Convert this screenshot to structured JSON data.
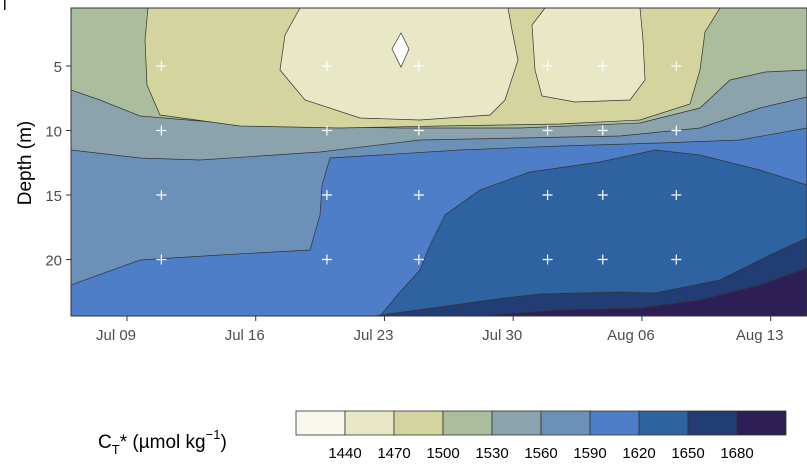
{
  "chart_data": {
    "type": "contour",
    "xlabel": "",
    "ylabel": "Depth (m)",
    "y_reversed": true,
    "x_ticks": [
      "Jul 09",
      "Jul 16",
      "Jul 23",
      "Jul 30",
      "Aug 06",
      "Aug 13"
    ],
    "y_ticks": [
      "5",
      "10",
      "15",
      "20"
    ],
    "legend": {
      "title_main": "C",
      "title_sub": "T",
      "title_rest": "* (µmol kg",
      "title_sup": "−1",
      "title_end": ")",
      "placement": "bottom",
      "breaks": [
        "1440",
        "1470",
        "1500",
        "1530",
        "1560",
        "1590",
        "1620",
        "1650",
        "1680"
      ],
      "colors": [
        "#f7f7ec",
        "#e8e8c6",
        "#d3d49e",
        "#acbd9e",
        "#8aa3ad",
        "#6c91b8",
        "#4f7ec8",
        "#2f62a0",
        "#223d74",
        "#2d1f55"
      ]
    },
    "sample_points": [
      {
        "date": "Jul 10",
        "depth": 5
      },
      {
        "date": "Jul 10",
        "depth": 10
      },
      {
        "date": "Jul 10",
        "depth": 15
      },
      {
        "date": "Jul 10",
        "depth": 20
      },
      {
        "date": "Jul 19",
        "depth": 5
      },
      {
        "date": "Jul 19",
        "depth": 10
      },
      {
        "date": "Jul 19",
        "depth": 15
      },
      {
        "date": "Jul 19",
        "depth": 20
      },
      {
        "date": "Jul 24",
        "depth": 5
      },
      {
        "date": "Jul 24",
        "depth": 10
      },
      {
        "date": "Jul 24",
        "depth": 15
      },
      {
        "date": "Jul 24",
        "depth": 20
      },
      {
        "date": "Jul 31",
        "depth": 5
      },
      {
        "date": "Jul 31",
        "depth": 10
      },
      {
        "date": "Jul 31",
        "depth": 15
      },
      {
        "date": "Jul 31",
        "depth": 20
      },
      {
        "date": "Aug 03",
        "depth": 5
      },
      {
        "date": "Aug 03",
        "depth": 10
      },
      {
        "date": "Aug 03",
        "depth": 15
      },
      {
        "date": "Aug 03",
        "depth": 20
      },
      {
        "date": "Aug 07",
        "depth": 5
      },
      {
        "date": "Aug 07",
        "depth": 10
      },
      {
        "date": "Aug 07",
        "depth": 15
      },
      {
        "date": "Aug 07",
        "depth": 20
      }
    ]
  }
}
